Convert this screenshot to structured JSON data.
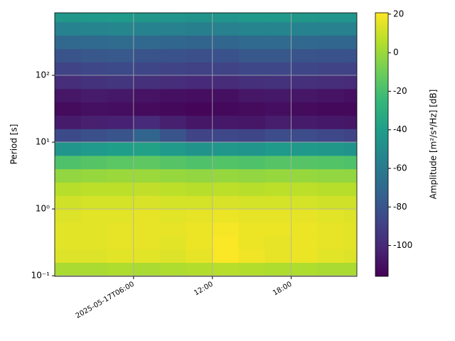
{
  "chart_data": {
    "type": "heatmap",
    "y_label": "Period [s]",
    "colorbar_label": "Amplitude [m²/s⁴/Hz] [dB]",
    "colormap": "viridis",
    "ylog": true,
    "grid": true,
    "x_bins": [
      "2025-05-17T00:00",
      "2025-05-17T02:00",
      "2025-05-17T04:00",
      "2025-05-17T06:00",
      "2025-05-17T08:00",
      "2025-05-17T10:00",
      "2025-05-17T12:00",
      "2025-05-17T14:00",
      "2025-05-17T16:00",
      "2025-05-17T18:00",
      "2025-05-17T20:00",
      "2025-05-17T22:00",
      "2025-05-17T23:00"
    ],
    "y_bins": [
      0.1,
      0.158,
      0.251,
      0.398,
      0.631,
      1,
      1.585,
      2.512,
      3.981,
      6.31,
      10,
      15.85,
      25.12,
      39.81,
      63.1,
      100,
      158.5,
      251.2,
      398.1,
      631,
      1000
    ],
    "values": [
      [
        3,
        3,
        4,
        3,
        4,
        5,
        6,
        5,
        4,
        4,
        3,
        3
      ],
      [
        14,
        14,
        15,
        15,
        14,
        16,
        20,
        18,
        16,
        17,
        15,
        14
      ],
      [
        15,
        15,
        16,
        16,
        15,
        17,
        20,
        17,
        16,
        17,
        16,
        15
      ],
      [
        15,
        15,
        16,
        16,
        16,
        17,
        19,
        17,
        17,
        17,
        16,
        15
      ],
      [
        14,
        15,
        15,
        16,
        15,
        16,
        17,
        16,
        16,
        16,
        15,
        14
      ],
      [
        11,
        12,
        12,
        13,
        12,
        12,
        13,
        12,
        12,
        12,
        11,
        11
      ],
      [
        6,
        7,
        7,
        8,
        7,
        6,
        7,
        6,
        7,
        7,
        6,
        6
      ],
      [
        -2,
        -1,
        0,
        0,
        -1,
        -2,
        -1,
        -2,
        -1,
        -1,
        -2,
        -2
      ],
      [
        -18,
        -16,
        -15,
        -14,
        -16,
        -18,
        -17,
        -18,
        -16,
        -16,
        -17,
        -18
      ],
      [
        -45,
        -42,
        -40,
        -38,
        -42,
        -46,
        -44,
        -45,
        -42,
        -43,
        -44,
        -46
      ],
      [
        -85,
        -82,
        -80,
        -72,
        -80,
        -88,
        -86,
        -87,
        -84,
        -84,
        -86,
        -88
      ],
      [
        -106,
        -104,
        -103,
        -100,
        -104,
        -108,
        -107,
        -108,
        -105,
        -106,
        -107,
        -108
      ],
      [
        -112,
        -110,
        -111,
        -112,
        -113,
        -114,
        -113,
        -112,
        -111,
        -112,
        -113,
        -113
      ],
      [
        -108,
        -106,
        -107,
        -109,
        -110,
        -111,
        -110,
        -108,
        -107,
        -108,
        -109,
        -110
      ],
      [
        -98,
        -96,
        -95,
        -97,
        -98,
        -100,
        -99,
        -97,
        -96,
        -97,
        -98,
        -99
      ],
      [
        -88,
        -86,
        -85,
        -87,
        -88,
        -89,
        -88,
        -86,
        -86,
        -87,
        -88,
        -88
      ],
      [
        -80,
        -79,
        -78,
        -80,
        -81,
        -82,
        -81,
        -79,
        -79,
        -80,
        -81,
        -81
      ],
      [
        -70,
        -69,
        -68,
        -70,
        -71,
        -72,
        -71,
        -69,
        -69,
        -70,
        -71,
        -71
      ],
      [
        -55,
        -54,
        -53,
        -55,
        -56,
        -57,
        -56,
        -54,
        -54,
        -55,
        -56,
        -56
      ],
      [
        -44,
        -43,
        -42,
        -44,
        -45,
        -46,
        -45,
        -43,
        -43,
        -44,
        -45,
        -45
      ]
    ],
    "xlim": [
      "2025-05-17T00:00",
      "2025-05-17T23:00"
    ],
    "xticks": [
      {
        "value": "2025-05-17T06:00",
        "label": "2025-05-17T06:00"
      },
      {
        "value": "2025-05-17T12:00",
        "label": "12:00"
      },
      {
        "value": "2025-05-17T18:00",
        "label": "18:00"
      }
    ],
    "ylim": [
      0.098,
      863
    ],
    "yticks": [
      {
        "value": 0.1,
        "label": "10⁻¹"
      },
      {
        "value": 1,
        "label": "10⁰"
      },
      {
        "value": 10,
        "label": "10¹"
      },
      {
        "value": 100,
        "label": "10²"
      }
    ],
    "clim": [
      -116,
      20.7
    ],
    "cticks": [
      20,
      0,
      -20,
      -40,
      -60,
      -80,
      -100
    ]
  }
}
